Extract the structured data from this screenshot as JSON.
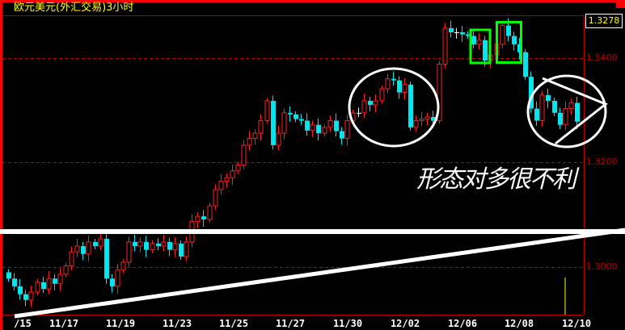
{
  "window": {
    "title": "欧元美元(外汇交易)3小时"
  },
  "current_price": "1.3278",
  "annotation_text": "形态对多很不利",
  "colors": {
    "up": "#ff2020",
    "down": "#00e5ee",
    "grid": "#c00000",
    "frame": "#ff0000",
    "annotation": "#ffffff",
    "box": "#00ff00",
    "title": "#ffff00"
  },
  "chart_data": {
    "type": "candlestick",
    "title": "欧元美元(外汇交易)3小时",
    "y_ticks": [
      "1.3400",
      "1.3200",
      "1.3000"
    ],
    "y_tick_values": [
      1.34,
      1.32,
      1.3
    ],
    "ylim": [
      1.2912,
      1.3483
    ],
    "grid": "horizontal dashed",
    "x_ticks": [
      "/15",
      "11/17",
      "11/19",
      "11/23",
      "11/25",
      "11/27",
      "11/30",
      "12/02",
      "12/06",
      "12/08",
      "12/10"
    ],
    "first_open": 1.299,
    "close": [
      1.2978,
      1.2963,
      1.2948,
      1.2937,
      1.2952,
      1.2971,
      1.2958,
      1.2978,
      1.2968,
      1.2986,
      1.3002,
      1.3029,
      1.304,
      1.3025,
      1.3048,
      1.304,
      1.3054,
      1.2978,
      1.2963,
      1.2994,
      1.3009,
      1.3048,
      1.304,
      1.3048,
      1.3033,
      1.3045,
      1.304,
      1.3048,
      1.3033,
      1.3045,
      1.302,
      1.3048,
      1.3087,
      1.3097,
      1.3091,
      1.3117,
      1.3148,
      1.3164,
      1.3171,
      1.3184,
      1.3195,
      1.3233,
      1.3246,
      1.3256,
      1.328,
      1.3318,
      1.3233,
      1.3256,
      1.3295,
      1.3292,
      1.3283,
      1.328,
      1.3261,
      1.3272,
      1.3256,
      1.3267,
      1.328,
      1.326,
      1.3246,
      1.328,
      1.3295,
      1.3295,
      1.3318,
      1.331,
      1.3318,
      1.3341,
      1.336,
      1.3357,
      1.3334,
      1.3349,
      1.3267,
      1.328,
      1.3283,
      1.3287,
      1.328,
      1.3388,
      1.3457,
      1.3449,
      1.3449,
      1.3445,
      1.3442,
      1.3426,
      1.3434,
      1.3395,
      1.3406,
      1.3426,
      1.3462,
      1.3442,
      1.3426,
      1.3411,
      1.3364,
      1.3303,
      1.328,
      1.3329,
      1.3318,
      1.3295,
      1.3272,
      1.3303,
      1.3314,
      1.3278
    ],
    "annotations": [
      "horizontal line",
      "rising trendline",
      "ellipse",
      "circle with triangle",
      "two green boxes",
      "形态对多很不利"
    ]
  }
}
